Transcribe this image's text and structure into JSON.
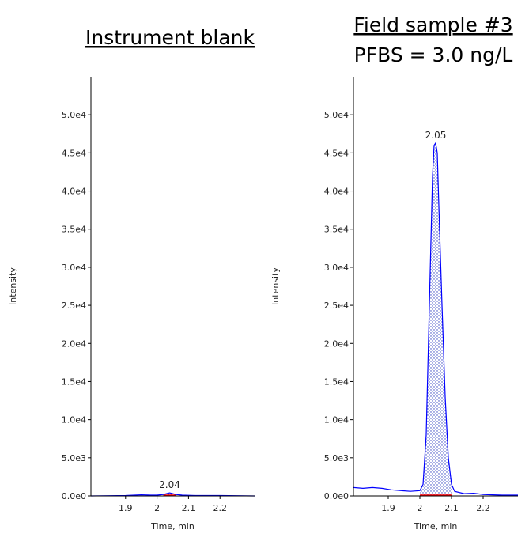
{
  "chart_data": [
    {
      "type": "line",
      "title": "Instrument blank",
      "xlabel": "Time, min",
      "ylabel": "Intensity",
      "color": "#0000ff",
      "integration_color": "#ff0000",
      "x": [
        1.79,
        1.85,
        1.9,
        1.95,
        1.98,
        2.0,
        2.02,
        2.04,
        2.06,
        2.08,
        2.12,
        2.2,
        2.31
      ],
      "values": [
        0,
        30,
        50,
        150,
        100,
        100,
        200,
        400,
        200,
        100,
        50,
        50,
        0
      ],
      "integration": [
        2.02,
        2.06
      ],
      "annotations": [
        {
          "text": "2.04",
          "x": 2.04,
          "y": 400
        }
      ],
      "xlim": [
        1.79,
        2.31
      ],
      "xticks": [
        1.9,
        2.0,
        2.1,
        2.2
      ],
      "ylim": [
        0,
        55000
      ],
      "yticks": [
        {
          "value": 0,
          "label": "0.0e0"
        },
        {
          "value": 5000,
          "label": "5.0e3"
        },
        {
          "value": 10000,
          "label": "1.0e4"
        },
        {
          "value": 15000,
          "label": "1.5e4"
        },
        {
          "value": 20000,
          "label": "2.0e4"
        },
        {
          "value": 25000,
          "label": "2.5e4"
        },
        {
          "value": 30000,
          "label": "3.0e4"
        },
        {
          "value": 35000,
          "label": "3.5e4"
        },
        {
          "value": 40000,
          "label": "4.0e4"
        },
        {
          "value": 45000,
          "label": "4.5e4"
        },
        {
          "value": 50000,
          "label": "5.0e4"
        }
      ]
    },
    {
      "type": "line",
      "title": "Field sample #3",
      "subtitle": "PFBS = 3.0 ng/L",
      "xlabel": "Time, min",
      "ylabel": "Intensity",
      "color": "#0000ff",
      "integration_color": "#ff0000",
      "x": [
        1.79,
        1.82,
        1.85,
        1.88,
        1.91,
        1.94,
        1.97,
        2.0,
        2.01,
        2.02,
        2.03,
        2.04,
        2.045,
        2.05,
        2.055,
        2.06,
        2.07,
        2.08,
        2.09,
        2.1,
        2.11,
        2.14,
        2.17,
        2.2,
        2.23,
        2.26,
        2.31
      ],
      "values": [
        1100,
        1000,
        1100,
        1000,
        800,
        700,
        600,
        700,
        1500,
        8000,
        25000,
        42000,
        46000,
        46300,
        45000,
        38000,
        25000,
        13000,
        5000,
        1500,
        600,
        300,
        350,
        200,
        150,
        100,
        100
      ],
      "integration": [
        2.0,
        2.1
      ],
      "annotations": [
        {
          "text": "2.05",
          "x": 2.05,
          "y": 46300
        }
      ],
      "xlim": [
        1.79,
        2.31
      ],
      "xticks": [
        1.9,
        2.0,
        2.1,
        2.2
      ],
      "ylim": [
        0,
        55000
      ],
      "yticks": [
        {
          "value": 0,
          "label": "0.0e0"
        },
        {
          "value": 5000,
          "label": "5.0e3"
        },
        {
          "value": 10000,
          "label": "1.0e4"
        },
        {
          "value": 15000,
          "label": "1.5e4"
        },
        {
          "value": 20000,
          "label": "2.0e4"
        },
        {
          "value": 25000,
          "label": "2.5e4"
        },
        {
          "value": 30000,
          "label": "3.0e4"
        },
        {
          "value": 35000,
          "label": "3.5e4"
        },
        {
          "value": 40000,
          "label": "4.0e4"
        },
        {
          "value": 45000,
          "label": "4.5e4"
        },
        {
          "value": 50000,
          "label": "5.0e4"
        }
      ]
    }
  ]
}
